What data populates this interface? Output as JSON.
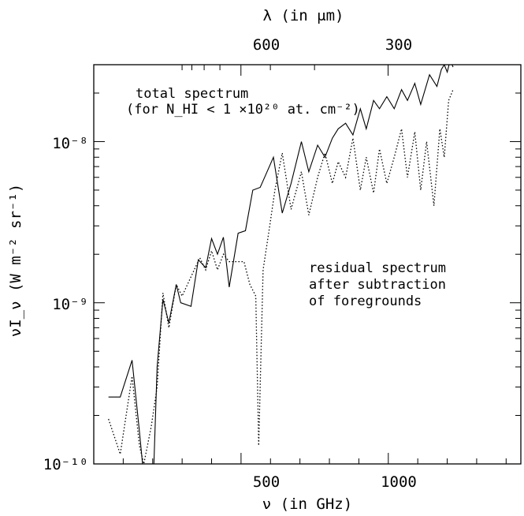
{
  "chart_data": {
    "type": "line",
    "xlabel": "ν (in GHz)",
    "ylabel": "νI_ν (W m⁻² sr⁻¹)",
    "top_xlabel": "λ (in μm)",
    "x_range": [
      0,
      1450
    ],
    "y_range": [
      1e-10,
      3e-08
    ],
    "y_scale": "log",
    "x_ticks": [
      500,
      1000
    ],
    "x_tick_labels": [
      "500",
      "1000"
    ],
    "y_ticks": [
      1e-10,
      1e-09,
      1e-08
    ],
    "y_tick_labels": [
      "10⁻¹⁰",
      "10⁻⁹",
      "10⁻⁸"
    ],
    "top_ticks_um": [
      600,
      300
    ],
    "top_tick_labels": [
      "600",
      "300"
    ],
    "annotations": [
      {
        "lines": [
          "total spectrum",
          "(for N_HI < 1 ×10²⁰ at. cm⁻²)"
        ]
      },
      {
        "lines": [
          "residual spectrum",
          "after subtraction",
          "of foregrounds"
        ]
      }
    ],
    "series": [
      {
        "style": "solid",
        "x": [
          50,
          90,
          130,
          155,
          168,
          188,
          200,
          215,
          235,
          255,
          280,
          295,
          330,
          355,
          380,
          400,
          420,
          440,
          460,
          490,
          515,
          540,
          565,
          580,
          610,
          640,
          670,
          705,
          730,
          760,
          785,
          810,
          830,
          855,
          880,
          905,
          925,
          950,
          970,
          995,
          1020,
          1045,
          1065,
          1090,
          1110,
          1140,
          1165,
          1180,
          1190,
          1200,
          1210,
          1220
        ],
        "y": [
          2.6e-10,
          2.6e-10,
          4.4e-10,
          1.6e-10,
          9e-11,
          6e-11,
          6e-11,
          4e-10,
          1.05e-09,
          7.5e-10,
          1.3e-09,
          1e-09,
          9.5e-10,
          1.85e-09,
          1.65e-09,
          2.5e-09,
          2e-09,
          2.55e-09,
          1.25e-09,
          2.7e-09,
          2.8e-09,
          5e-09,
          5.2e-09,
          6e-09,
          8e-09,
          3.6e-09,
          5.5e-09,
          1e-08,
          6.5e-09,
          9.5e-09,
          8e-09,
          1.05e-08,
          1.2e-08,
          1.3e-08,
          1.1e-08,
          1.6e-08,
          1.2e-08,
          1.8e-08,
          1.6e-08,
          1.9e-08,
          1.6e-08,
          2.1e-08,
          1.8e-08,
          2.3e-08,
          1.7e-08,
          2.6e-08,
          2.2e-08,
          2.8e-08,
          3e-08,
          2.7e-08,
          3.2e-08,
          2.9e-08
        ]
      },
      {
        "style": "dotted",
        "x": [
          50,
          90,
          130,
          155,
          170,
          195,
          215,
          235,
          255,
          280,
          300,
          330,
          360,
          380,
          400,
          420,
          440,
          460,
          490,
          510,
          530,
          550,
          560,
          575,
          595,
          615,
          640,
          670,
          705,
          730,
          760,
          785,
          810,
          830,
          855,
          880,
          905,
          925,
          950,
          970,
          995,
          1020,
          1045,
          1065,
          1090,
          1110,
          1130,
          1155,
          1175,
          1190,
          1205,
          1220
        ],
        "y": [
          1.9e-10,
          1.15e-10,
          3.5e-10,
          1.3e-10,
          1e-10,
          1.7e-10,
          3e-10,
          1.15e-09,
          7e-10,
          1.3e-09,
          1.1e-09,
          1.45e-09,
          1.9e-09,
          1.6e-09,
          2.1e-09,
          1.6e-09,
          2e-09,
          1.8e-09,
          1.8e-09,
          1.8e-09,
          1.3e-09,
          1.1e-09,
          1.3e-10,
          1.6e-09,
          2.8e-09,
          5e-09,
          8.5e-09,
          3.8e-09,
          6.5e-09,
          3.5e-09,
          6e-09,
          8.5e-09,
          5.5e-09,
          7.5e-09,
          6e-09,
          1.05e-08,
          5e-09,
          8e-09,
          4.8e-09,
          9e-09,
          5.5e-09,
          8e-09,
          1.2e-08,
          6e-09,
          1.15e-08,
          5e-09,
          1e-08,
          4e-09,
          1.2e-08,
          8e-09,
          1.8e-08,
          2.1e-08
        ]
      }
    ]
  }
}
